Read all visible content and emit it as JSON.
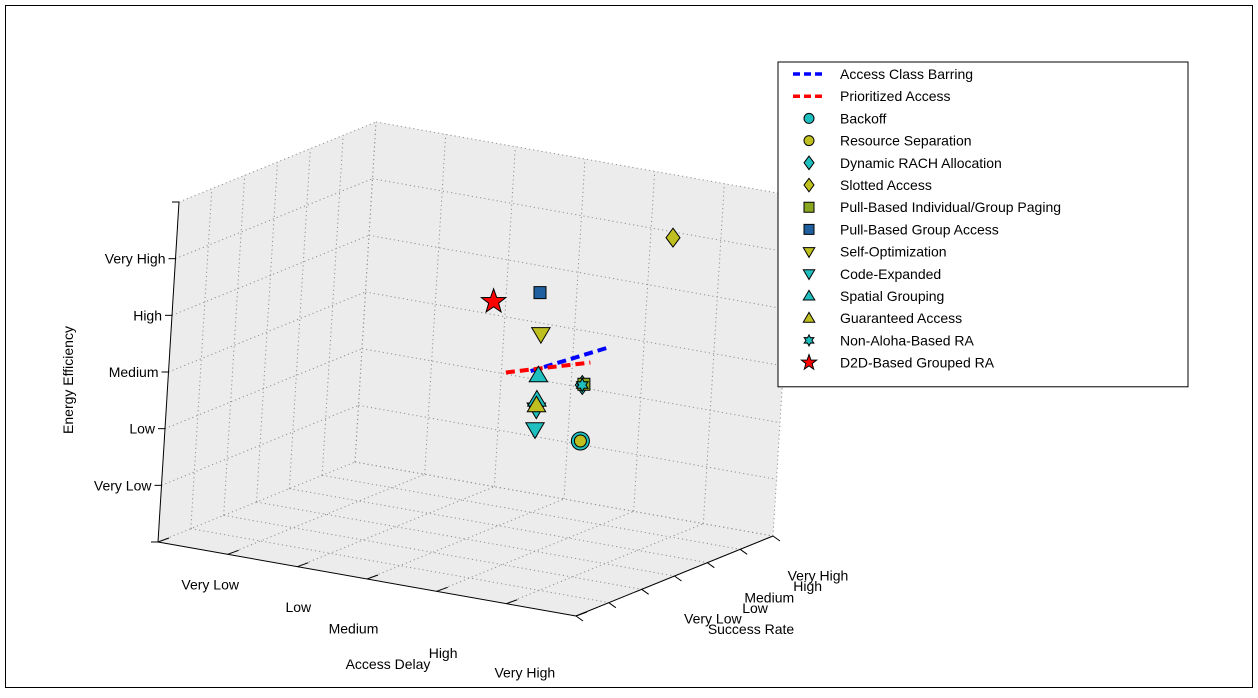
{
  "chart_data": {
    "type": "scatter",
    "projection": "3d",
    "title": "",
    "xlabel": "Access Delay",
    "ylabel": "Success Rate",
    "zlabel": "Energy Efficiency",
    "x_ticks": [
      "Very Low",
      "Low",
      "Medium",
      "High",
      "Very High"
    ],
    "y_ticks": [
      "Very Low",
      "Low",
      "Medium",
      "High",
      "Very High"
    ],
    "z_ticks": [
      "Very Low",
      "Low",
      "Medium",
      "High",
      "Very High"
    ],
    "grid": true,
    "legend_position": "top-right",
    "colors": {
      "cyan": "#1fbfbf",
      "olive": "#bfbf1f",
      "green": "#8aa61f",
      "navy": "#1f5f9f",
      "blue": "#0000ff",
      "red": "#ff0000",
      "pane": "#ececec",
      "grid": "#909090"
    },
    "series": [
      {
        "name": "Access Class Barring",
        "marker": "dashed-line",
        "color": "#0000ff",
        "points": [
          {
            "x": 4.55,
            "y": 1.3,
            "z": 3.7
          },
          {
            "x": 4.75,
            "y": 3.3,
            "z": 3.7
          }
        ]
      },
      {
        "name": "Prioritized Access",
        "marker": "dashed-line",
        "color": "#ff0000",
        "points": [
          {
            "x": 4.2,
            "y": 1.3,
            "z": 3.6
          },
          {
            "x": 4.8,
            "y": 2.6,
            "z": 3.6
          }
        ]
      },
      {
        "name": "Backoff",
        "marker": "circle",
        "color": "#1fbfbf",
        "points": [
          {
            "x": 5.0,
            "y": 2.0,
            "z": 2.4
          }
        ]
      },
      {
        "name": "Resource Separation",
        "marker": "circle",
        "color": "#bfbf1f",
        "points": [
          {
            "x": 5.0,
            "y": 2.0,
            "z": 2.4
          }
        ]
      },
      {
        "name": "Dynamic RACH Allocation",
        "marker": "diamond",
        "color": "#1fbfbf",
        "points": [
          {
            "x": 5.0,
            "y": 1.95,
            "z": 3.4
          }
        ]
      },
      {
        "name": "Slotted Access",
        "marker": "diamond",
        "color": "#bfbf1f",
        "points": [
          {
            "x": 5.0,
            "y": 4.5,
            "z": 5.4
          }
        ]
      },
      {
        "name": "Pull-Based Individual/Group Paging",
        "marker": "square",
        "color": "#8aa61f",
        "points": [
          {
            "x": 5.0,
            "y": 2.0,
            "z": 3.4
          }
        ]
      },
      {
        "name": "Pull-Based Group Access",
        "marker": "square",
        "color": "#1f5f9f",
        "points": [
          {
            "x": 4.75,
            "y": 1.0,
            "z": 5.2
          }
        ]
      },
      {
        "name": "Self-Optimization",
        "marker": "triangle-down",
        "color": "#bfbf1f",
        "points": [
          {
            "x": 4.8,
            "y": 1.0,
            "z": 4.48
          }
        ]
      },
      {
        "name": "Code-Expanded",
        "marker": "triangle-down",
        "color": "#1fbfbf",
        "points": [
          {
            "x": 4.8,
            "y": 1.0,
            "z": 2.8
          },
          {
            "x": 4.8,
            "y": 1.0,
            "z": 3.15
          }
        ]
      },
      {
        "name": "Spatial Grouping",
        "marker": "triangle-up",
        "color": "#1fbfbf",
        "points": [
          {
            "x": 4.8,
            "y": 1.0,
            "z": 3.32
          },
          {
            "x": 4.8,
            "y": 1.0,
            "z": 3.75
          }
        ]
      },
      {
        "name": "Guaranteed Access",
        "marker": "triangle-up",
        "color": "#bfbf1f",
        "points": [
          {
            "x": 4.8,
            "y": 1.0,
            "z": 3.22
          }
        ]
      },
      {
        "name": "Non-Aloha-Based RA",
        "marker": "hexagram",
        "color": "#1fbfbf",
        "points": [
          {
            "x": 5.0,
            "y": 1.95,
            "z": 3.4
          }
        ]
      },
      {
        "name": "D2D-Based Grouped RA",
        "marker": "pentagram",
        "color": "#ff0000",
        "points": [
          {
            "x": 4.1,
            "y": 1.0,
            "z": 4.9
          }
        ]
      }
    ]
  }
}
